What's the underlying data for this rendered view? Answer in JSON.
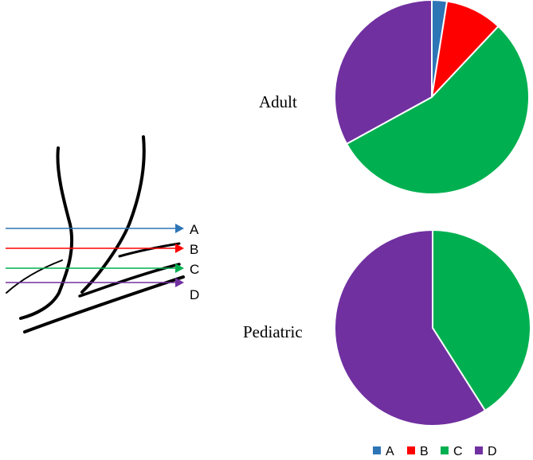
{
  "colors": {
    "A": "#2E75B6",
    "B": "#FF0000",
    "C": "#00B050",
    "D": "#7030A0"
  },
  "arrow_labels": [
    "A",
    "B",
    "C",
    "D"
  ],
  "chart_data": [
    {
      "type": "pie",
      "title": "Adult",
      "labels": [
        "A",
        "B",
        "C",
        "D"
      ],
      "values": [
        2.5,
        9.5,
        55,
        33
      ]
    },
    {
      "type": "pie",
      "title": "Pediatric",
      "labels": [
        "A",
        "B",
        "C",
        "D"
      ],
      "values": [
        0,
        0,
        41,
        59
      ]
    }
  ],
  "legend": {
    "placement": "bottom",
    "entries": [
      "A",
      "B",
      "C",
      "D"
    ]
  }
}
